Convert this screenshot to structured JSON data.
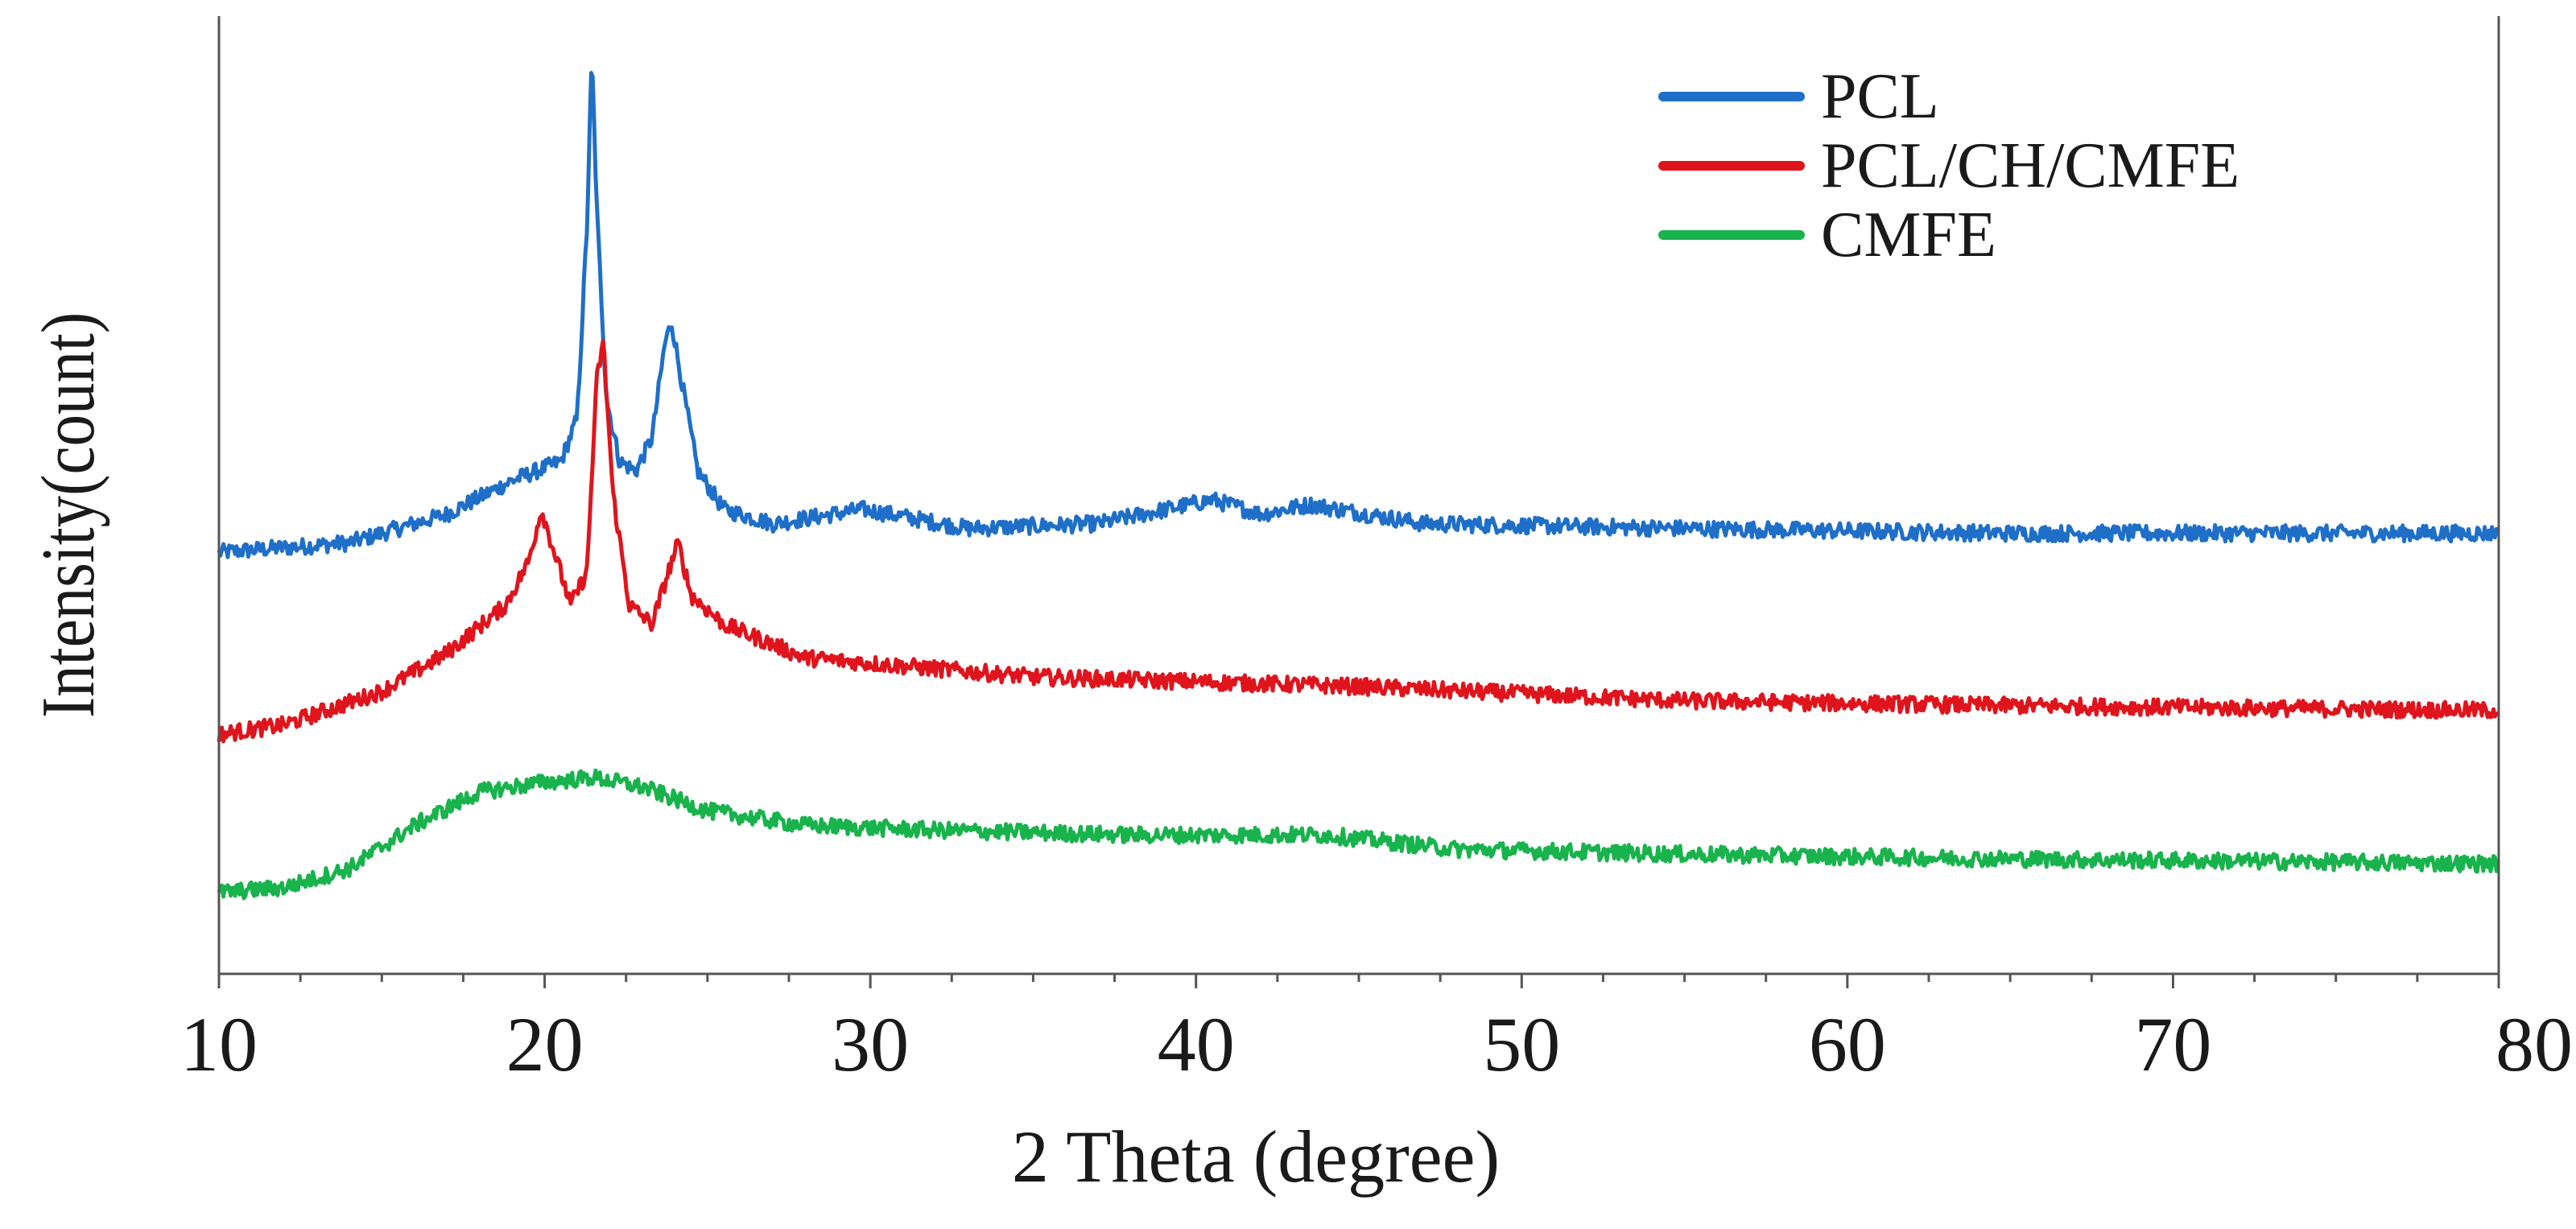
{
  "chart_data": {
    "type": "line",
    "title": "",
    "xlabel": "2 Theta (degree)",
    "ylabel": "Intensity(count)",
    "xlim": [
      10,
      80
    ],
    "ylim": [
      0,
      100
    ],
    "y_ticks_shown": false,
    "x_ticks": [
      10,
      20,
      30,
      40,
      50,
      60,
      70,
      80
    ],
    "x_tick_labels": [
      "10",
      "20",
      "30",
      "40",
      "50",
      "60",
      "70",
      "80"
    ],
    "x_minor_step": 2.5,
    "grid": false,
    "legend_position": "top-right",
    "series": [
      {
        "name": "PCL",
        "color": "#1f6fc9",
        "points": [
          [
            10,
            44.0
          ],
          [
            14,
            45.0
          ],
          [
            17,
            48.0
          ],
          [
            19,
            51.5
          ],
          [
            20.5,
            53.5
          ],
          [
            21.0,
            58
          ],
          [
            21.3,
            78
          ],
          [
            21.45,
            96
          ],
          [
            21.6,
            80
          ],
          [
            21.9,
            60
          ],
          [
            22.3,
            53.5
          ],
          [
            22.8,
            52.5
          ],
          [
            23.3,
            56
          ],
          [
            23.7,
            66
          ],
          [
            23.9,
            68
          ],
          [
            24.2,
            62
          ],
          [
            24.7,
            52.5
          ],
          [
            25.5,
            48.5
          ],
          [
            27,
            47
          ],
          [
            29.8,
            48.5
          ],
          [
            33,
            46.5
          ],
          [
            37,
            47
          ],
          [
            40.5,
            49.5
          ],
          [
            42,
            48
          ],
          [
            43.5,
            49
          ],
          [
            47,
            47
          ],
          [
            55,
            46.5
          ],
          [
            65,
            46
          ],
          [
            80,
            46
          ]
        ]
      },
      {
        "name": "PCL/CH/CMFE",
        "color": "#e0141c",
        "points": [
          [
            10,
            25.0
          ],
          [
            12,
            26.0
          ],
          [
            15,
            29.5
          ],
          [
            17,
            33.5
          ],
          [
            18.8,
            38.5
          ],
          [
            19.5,
            43
          ],
          [
            19.9,
            48.5
          ],
          [
            20.3,
            44
          ],
          [
            20.8,
            38.5
          ],
          [
            21.3,
            42
          ],
          [
            21.6,
            62
          ],
          [
            21.8,
            66
          ],
          [
            22.1,
            50
          ],
          [
            22.6,
            38.5
          ],
          [
            23.3,
            36.5
          ],
          [
            23.8,
            42
          ],
          [
            24.1,
            45
          ],
          [
            24.5,
            39.5
          ],
          [
            25.5,
            36.5
          ],
          [
            28,
            33
          ],
          [
            35,
            31
          ],
          [
            45,
            30
          ],
          [
            55,
            28.5
          ],
          [
            65,
            28
          ],
          [
            80,
            27.5
          ]
        ]
      },
      {
        "name": "CMFE",
        "color": "#18b34c",
        "points": [
          [
            10,
            8.5
          ],
          [
            12,
            9.0
          ],
          [
            14,
            11.0
          ],
          [
            16,
            15.5
          ],
          [
            18,
            19.0
          ],
          [
            20,
            20.0
          ],
          [
            21.5,
            20.5
          ],
          [
            23,
            19.5
          ],
          [
            25,
            17.0
          ],
          [
            28,
            15.5
          ],
          [
            32,
            15.0
          ],
          [
            38,
            14.5
          ],
          [
            44,
            14.5
          ],
          [
            48,
            13.0
          ],
          [
            55,
            12.5
          ],
          [
            65,
            12.0
          ],
          [
            80,
            11.5
          ]
        ]
      }
    ]
  }
}
